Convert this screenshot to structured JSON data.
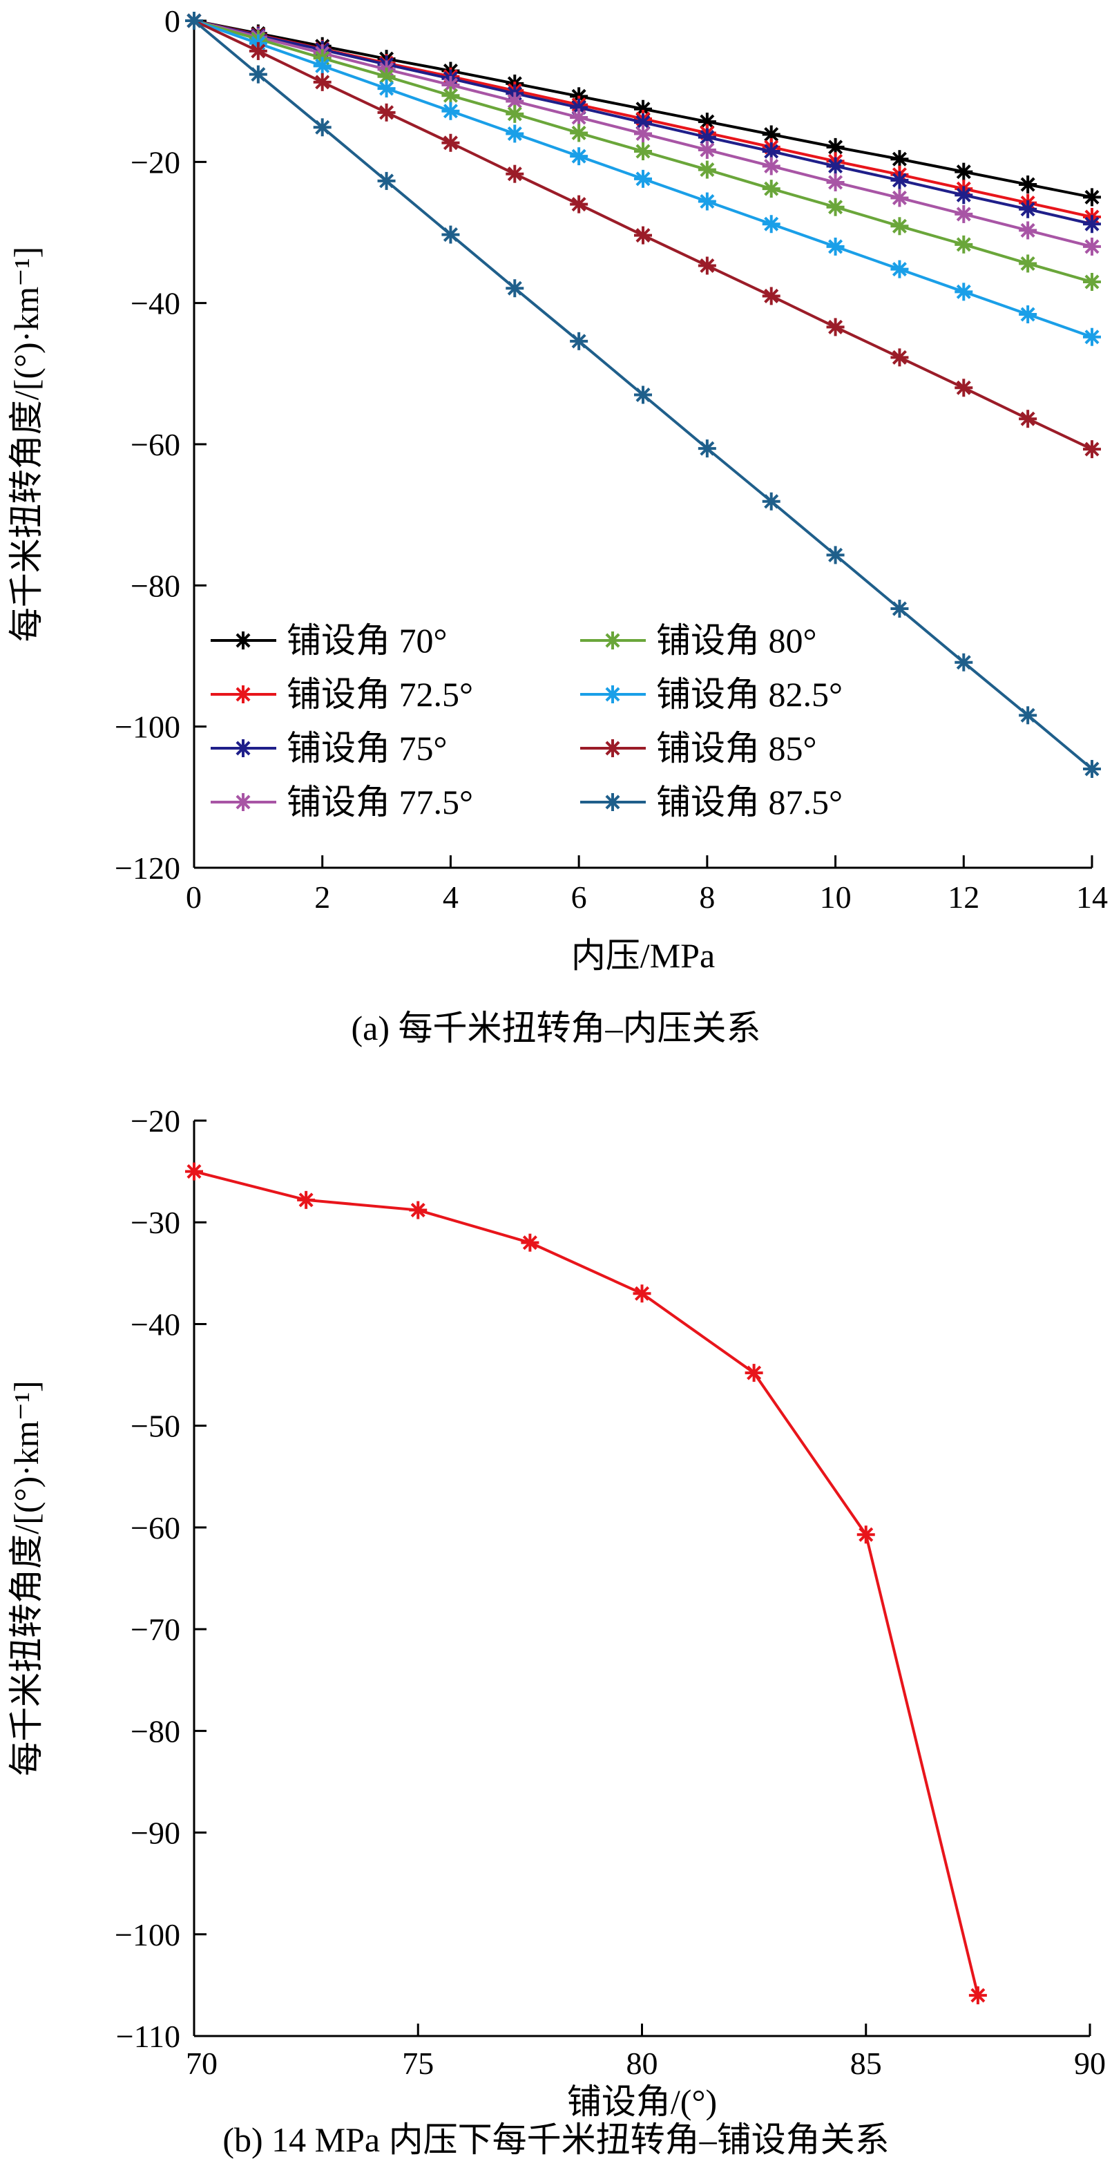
{
  "chart_data": [
    {
      "type": "line",
      "title": "",
      "caption": "(a)  每千米扭转角–内压关系",
      "xlabel": "内压/MPa",
      "ylabel": "每千米扭转角度/[(°)·km⁻¹]",
      "xlim": [
        0,
        14
      ],
      "ylim": [
        -120,
        0
      ],
      "xticks": [
        0,
        2,
        4,
        6,
        8,
        10,
        12,
        14
      ],
      "yticks": [
        0,
        -20,
        -40,
        -60,
        -80,
        -100,
        -120
      ],
      "grid": false,
      "legend_position": "bottom-left",
      "x": [
        0,
        1,
        2,
        3,
        4,
        5,
        6,
        7,
        8,
        9,
        10,
        11,
        12,
        13,
        14
      ],
      "series": [
        {
          "name": "铺设角 70°",
          "color": "#000000",
          "values": [
            0,
            -1.8,
            -3.6,
            -5.4,
            -7.1,
            -8.9,
            -10.7,
            -12.5,
            -14.3,
            -16.1,
            -17.9,
            -19.6,
            -21.4,
            -23.2,
            -25
          ]
        },
        {
          "name": "铺设角 72.5°",
          "color": "#e8151b",
          "values": [
            0,
            -2,
            -4,
            -6,
            -7.9,
            -9.9,
            -11.9,
            -13.9,
            -15.9,
            -17.9,
            -19.9,
            -21.8,
            -23.8,
            -25.8,
            -27.8
          ]
        },
        {
          "name": "铺设角 75°",
          "color": "#1f1f8a",
          "values": [
            0,
            -2.1,
            -4.1,
            -6.2,
            -8.2,
            -10.3,
            -12.3,
            -14.4,
            -16.5,
            -18.5,
            -20.6,
            -22.6,
            -24.7,
            -26.7,
            -28.8
          ]
        },
        {
          "name": "铺设角 77.5°",
          "color": "#a855a5",
          "values": [
            0,
            -2.3,
            -4.6,
            -6.9,
            -9.1,
            -11.4,
            -13.7,
            -16,
            -18.3,
            -20.6,
            -22.9,
            -25.1,
            -27.4,
            -29.7,
            -32
          ]
        },
        {
          "name": "铺设角 80°",
          "color": "#6aa63a",
          "values": [
            0,
            -2.6,
            -5.3,
            -7.9,
            -10.6,
            -13.2,
            -15.9,
            -18.5,
            -21.1,
            -23.8,
            -26.4,
            -29.1,
            -31.7,
            -34.4,
            -37
          ]
        },
        {
          "name": "铺设角 82.5°",
          "color": "#1a9fe8",
          "values": [
            0,
            -3.2,
            -6.4,
            -9.6,
            -12.8,
            -16,
            -19.2,
            -22.4,
            -25.6,
            -28.8,
            -32,
            -35.2,
            -38.4,
            -41.6,
            -44.8
          ]
        },
        {
          "name": "铺设角 85°",
          "color": "#9b1c28",
          "values": [
            0,
            -4.3,
            -8.7,
            -13,
            -17.3,
            -21.7,
            -26,
            -30.4,
            -34.7,
            -39,
            -43.4,
            -47.7,
            -52,
            -56.4,
            -60.7
          ]
        },
        {
          "name": "铺设角 87.5°",
          "color": "#1f5f8b",
          "values": [
            0,
            -7.6,
            -15.1,
            -22.7,
            -30.3,
            -37.9,
            -45.4,
            -53,
            -60.6,
            -68.1,
            -75.7,
            -83.3,
            -90.9,
            -98.4,
            -106
          ]
        }
      ]
    },
    {
      "type": "line",
      "title": "",
      "caption": "(b)  14 MPa 内压下每千米扭转角–铺设角关系",
      "xlabel": "铺设角/(°)",
      "ylabel": "每千米扭转角度/[(°)·km⁻¹]",
      "xlim": [
        70,
        90
      ],
      "ylim": [
        -110,
        -20
      ],
      "xticks": [
        70,
        75,
        80,
        85,
        90
      ],
      "yticks": [
        -20,
        -30,
        -40,
        -50,
        -60,
        -70,
        -80,
        -90,
        -100,
        -110
      ],
      "grid": false,
      "x": [
        70,
        72.5,
        75,
        77.5,
        80,
        82.5,
        85,
        87.5
      ],
      "series": [
        {
          "name": "14 MPa",
          "color": "#e8151b",
          "values": [
            -25,
            -27.8,
            -28.8,
            -32,
            -37,
            -44.8,
            -60.7,
            -106
          ]
        }
      ]
    }
  ]
}
